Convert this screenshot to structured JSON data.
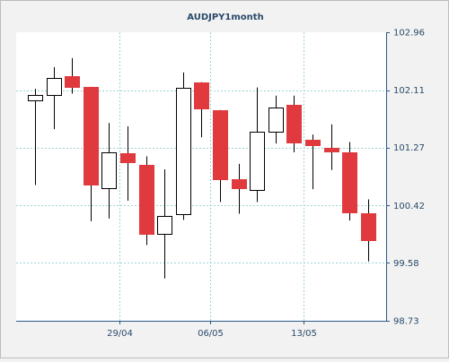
{
  "chart_data": {
    "type": "candlestick",
    "title": "AUDJPY1month",
    "xlabel": "",
    "ylabel": "",
    "ylim": [
      98.73,
      102.96
    ],
    "y_ticks": [
      {
        "value": 102.96,
        "label": "102.96"
      },
      {
        "value": 102.11,
        "label": "102.11"
      },
      {
        "value": 101.27,
        "label": "101.27"
      },
      {
        "value": 100.42,
        "label": "100.42"
      },
      {
        "value": 99.58,
        "label": "99.58"
      },
      {
        "value": 98.73,
        "label": "98.73"
      }
    ],
    "x_ticks": [
      {
        "index": 4.55,
        "label": "29/04"
      },
      {
        "index": 9.45,
        "label": "06/05"
      },
      {
        "index": 14.5,
        "label": "13/05"
      }
    ],
    "grid": true,
    "up_color": "#ffffff",
    "down_color": "#e03a3e",
    "candles": [
      {
        "open": 101.96,
        "high": 102.13,
        "low": 100.72,
        "close": 102.04
      },
      {
        "open": 102.04,
        "high": 102.45,
        "low": 101.54,
        "close": 102.29
      },
      {
        "open": 102.31,
        "high": 102.58,
        "low": 102.06,
        "close": 102.14
      },
      {
        "open": 102.16,
        "high": 102.16,
        "low": 100.19,
        "close": 100.72
      },
      {
        "open": 100.67,
        "high": 101.63,
        "low": 100.23,
        "close": 101.2
      },
      {
        "open": 101.18,
        "high": 101.58,
        "low": 100.49,
        "close": 101.03
      },
      {
        "open": 101.01,
        "high": 101.14,
        "low": 99.84,
        "close": 99.99
      },
      {
        "open": 100.01,
        "high": 100.95,
        "low": 99.35,
        "close": 100.27
      },
      {
        "open": 100.29,
        "high": 102.37,
        "low": 100.21,
        "close": 102.14
      },
      {
        "open": 102.23,
        "high": 102.23,
        "low": 101.42,
        "close": 101.84
      },
      {
        "open": 101.82,
        "high": 101.82,
        "low": 100.47,
        "close": 100.8
      },
      {
        "open": 100.8,
        "high": 101.03,
        "low": 100.3,
        "close": 100.66
      },
      {
        "open": 100.64,
        "high": 102.15,
        "low": 100.47,
        "close": 101.5
      },
      {
        "open": 101.5,
        "high": 102.03,
        "low": 101.33,
        "close": 101.86
      },
      {
        "open": 101.9,
        "high": 102.03,
        "low": 101.2,
        "close": 101.33
      },
      {
        "open": 101.39,
        "high": 101.46,
        "low": 100.66,
        "close": 101.3
      },
      {
        "open": 101.27,
        "high": 101.61,
        "low": 100.94,
        "close": 101.2
      },
      {
        "open": 101.2,
        "high": 101.35,
        "low": 100.2,
        "close": 100.31
      },
      {
        "open": 100.31,
        "high": 100.51,
        "low": 99.6,
        "close": 99.9
      }
    ]
  }
}
